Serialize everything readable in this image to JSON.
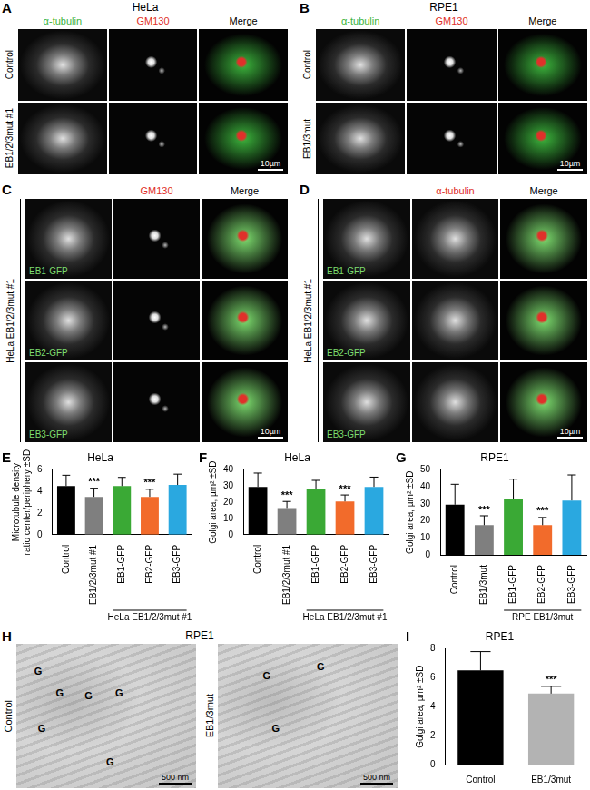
{
  "figure": {
    "panels": [
      {
        "letter": "A",
        "title": "HeLa",
        "columns": [
          {
            "text": "α-tubulin",
            "color": "#3cb43c"
          },
          {
            "text": "GM130",
            "color": "#e0302a"
          },
          {
            "text": "Merge",
            "color": "#000000"
          }
        ],
        "rows": [
          {
            "label": "Control"
          },
          {
            "label": "EB1/2/3mut #1"
          }
        ],
        "scale_bar": "10µm"
      },
      {
        "letter": "B",
        "title": "RPE1",
        "columns": [
          {
            "text": "α-tubulin",
            "color": "#3cb43c"
          },
          {
            "text": "GM130",
            "color": "#e0302a"
          },
          {
            "text": "Merge",
            "color": "#000000"
          }
        ],
        "rows": [
          {
            "label": "Control"
          },
          {
            "label": "EB1/3mut"
          }
        ],
        "scale_bar": "10µm"
      },
      {
        "letter": "C",
        "side_label": "HeLa EB1/2/3mut #1",
        "columns": [
          null,
          {
            "text": "GM130",
            "color": "#e0302a"
          },
          {
            "text": "Merge",
            "color": "#000000"
          }
        ],
        "rows": [
          {
            "cell_label": {
              "text": "EB1-GFP",
              "color": "#7ddc6e"
            }
          },
          {
            "cell_label": {
              "text": "EB2-GFP",
              "color": "#7ddc6e"
            }
          },
          {
            "cell_label": {
              "text": "EB3-GFP",
              "color": "#7ddc6e"
            }
          }
        ],
        "scale_bar": "10µm"
      },
      {
        "letter": "D",
        "side_label": "HeLa EB1/2/3mut #1",
        "columns": [
          null,
          {
            "text": "α-tubulin",
            "color": "#e0302a"
          },
          {
            "text": "Merge",
            "color": "#000000"
          }
        ],
        "rows": [
          {
            "cell_label": {
              "text": "EB1-GFP",
              "color": "#7ddc6e"
            }
          },
          {
            "cell_label": {
              "text": "EB2-GFP",
              "color": "#7ddc6e"
            }
          },
          {
            "cell_label": {
              "text": "EB3-GFP",
              "color": "#7ddc6e"
            }
          }
        ],
        "scale_bar": "10µm"
      },
      {
        "letter": "H",
        "title": "RPE1",
        "images": [
          {
            "label": "Control",
            "marks": [
              "G",
              "G",
              "G",
              "G",
              "G",
              "G"
            ]
          },
          {
            "label": "EB1/3mut",
            "marks": [
              "G",
              "G",
              "G"
            ]
          }
        ],
        "scale_bar": "500 nm"
      }
    ]
  },
  "chart_data": [
    {
      "type": "bar",
      "panel": "E",
      "title": "HeLa",
      "y_label": [
        "Microtubule density",
        "ratio center/periphery ±SD"
      ],
      "categories": [
        "Control",
        "EB1/2/3mut #1",
        "EB1-GFP",
        "EB2-GFP",
        "EB3-GFP"
      ],
      "values": [
        4.5,
        3.5,
        4.5,
        3.5,
        4.6
      ],
      "errors": [
        1.0,
        0.8,
        0.8,
        0.7,
        1.0
      ],
      "colors": [
        "#000000",
        "#7f7f7f",
        "#3aa935",
        "#f26b2b",
        "#2aa8e0"
      ],
      "annotations": [
        null,
        "***",
        null,
        "***",
        null
      ],
      "group_label": {
        "text": "HeLa EB1/2/3mut #1",
        "from": 2,
        "to": 4
      },
      "ylim": [
        0,
        6
      ],
      "yticks": [
        0,
        2,
        4,
        6
      ],
      "grid": false
    },
    {
      "type": "bar",
      "panel": "F",
      "title": "HeLa",
      "y_label": [
        "Golgi area, µm² ±SD"
      ],
      "categories": [
        "Control",
        "EB1/2/3mut #1",
        "EB1-GFP",
        "EB2-GFP",
        "EB3-GFP"
      ],
      "values": [
        29.5,
        16.5,
        28,
        20.5,
        29.5
      ],
      "errors": [
        8.5,
        4,
        5.5,
        4,
        6
      ],
      "colors": [
        "#000000",
        "#7f7f7f",
        "#3aa935",
        "#f26b2b",
        "#2aa8e0"
      ],
      "annotations": [
        null,
        "***",
        null,
        "***",
        null
      ],
      "group_label": {
        "text": "HeLa EB1/2/3mut #1",
        "from": 2,
        "to": 4
      },
      "ylim": [
        0,
        40
      ],
      "yticks": [
        0,
        10,
        20,
        30,
        40
      ],
      "grid": false
    },
    {
      "type": "bar",
      "panel": "G",
      "title": "RPE1",
      "y_label": [
        "Golgi area, µm² ±SD"
      ],
      "categories": [
        "Control",
        "EB1/3mut",
        "EB1-GFP",
        "EB2-GFP",
        "EB3-GFP"
      ],
      "values": [
        29.5,
        17.5,
        33,
        17.5,
        32
      ],
      "errors": [
        12,
        5.5,
        11.5,
        4.5,
        15
      ],
      "colors": [
        "#000000",
        "#7f7f7f",
        "#3aa935",
        "#f26b2b",
        "#2aa8e0"
      ],
      "annotations": [
        null,
        "***",
        null,
        "***",
        null
      ],
      "group_label": {
        "text": "RPE EB1/3mut",
        "from": 2,
        "to": 4
      },
      "ylim": [
        0,
        50
      ],
      "yticks": [
        0,
        10,
        20,
        30,
        40,
        50
      ],
      "grid": false
    },
    {
      "type": "bar",
      "panel": "I",
      "title": "RPE1",
      "y_label": [
        "Golgi area, µm² ±SD"
      ],
      "categories": [
        "Control",
        "EB1/3mut"
      ],
      "values": [
        6.5,
        4.9
      ],
      "errors": [
        1.3,
        0.5
      ],
      "colors": [
        "#000000",
        "#b3b3b3"
      ],
      "annotations": [
        null,
        "***"
      ],
      "ylim": [
        0,
        8
      ],
      "yticks": [
        0,
        2,
        4,
        6,
        8
      ],
      "grid": false
    }
  ]
}
